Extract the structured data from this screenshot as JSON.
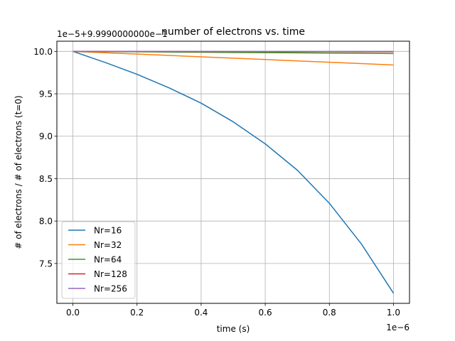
{
  "chart_data": {
    "type": "line",
    "title": "number of electrons vs. time",
    "xlabel": "time (s)",
    "ylabel": "# of electrons / # of electrons (t=0)",
    "x_offset_text": "1e−6",
    "y_offset_text": "1e−5+9.9990000000e−1",
    "xlim": [
      -0.05,
      1.05
    ],
    "ylim": [
      7.03,
      10.12
    ],
    "xticks": [
      0.0,
      0.2,
      0.4,
      0.6,
      0.8,
      1.0
    ],
    "xtick_labels": [
      "0.0",
      "0.2",
      "0.4",
      "0.6",
      "0.8",
      "1.0"
    ],
    "yticks": [
      7.5,
      8.0,
      8.5,
      9.0,
      9.5,
      10.0
    ],
    "ytick_labels": [
      "7.5",
      "8.0",
      "8.5",
      "9.0",
      "9.5",
      "10.0"
    ],
    "grid": true,
    "legend_position": "lower-left",
    "x": [
      0.0,
      0.1,
      0.2,
      0.3,
      0.4,
      0.5,
      0.6,
      0.7,
      0.8,
      0.9,
      1.0
    ],
    "series": [
      {
        "name": "Nr=16",
        "color": "#1f77b4",
        "values": [
          10.0,
          9.87,
          9.73,
          9.57,
          9.39,
          9.17,
          8.91,
          8.6,
          8.21,
          7.73,
          7.15
        ]
      },
      {
        "name": "Nr=32",
        "color": "#ff7f0e",
        "values": [
          10.0,
          9.984,
          9.968,
          9.952,
          9.936,
          9.92,
          9.904,
          9.888,
          9.872,
          9.856,
          9.84
        ]
      },
      {
        "name": "Nr=64",
        "color": "#2ca02c",
        "values": [
          10.0,
          9.9975,
          9.995,
          9.9925,
          9.99,
          9.9875,
          9.985,
          9.9825,
          9.98,
          9.9775,
          9.975
        ]
      },
      {
        "name": "Nr=128",
        "color": "#d62728",
        "values": [
          10.0,
          9.9995,
          9.999,
          9.9985,
          9.998,
          9.9975,
          9.997,
          9.9965,
          9.996,
          9.9955,
          9.995
        ]
      },
      {
        "name": "Nr=256",
        "color": "#9467bd",
        "values": [
          10.0,
          10.0,
          10.0,
          10.0,
          10.0,
          10.0,
          10.0,
          10.0,
          10.0,
          10.0,
          10.0
        ]
      }
    ]
  }
}
